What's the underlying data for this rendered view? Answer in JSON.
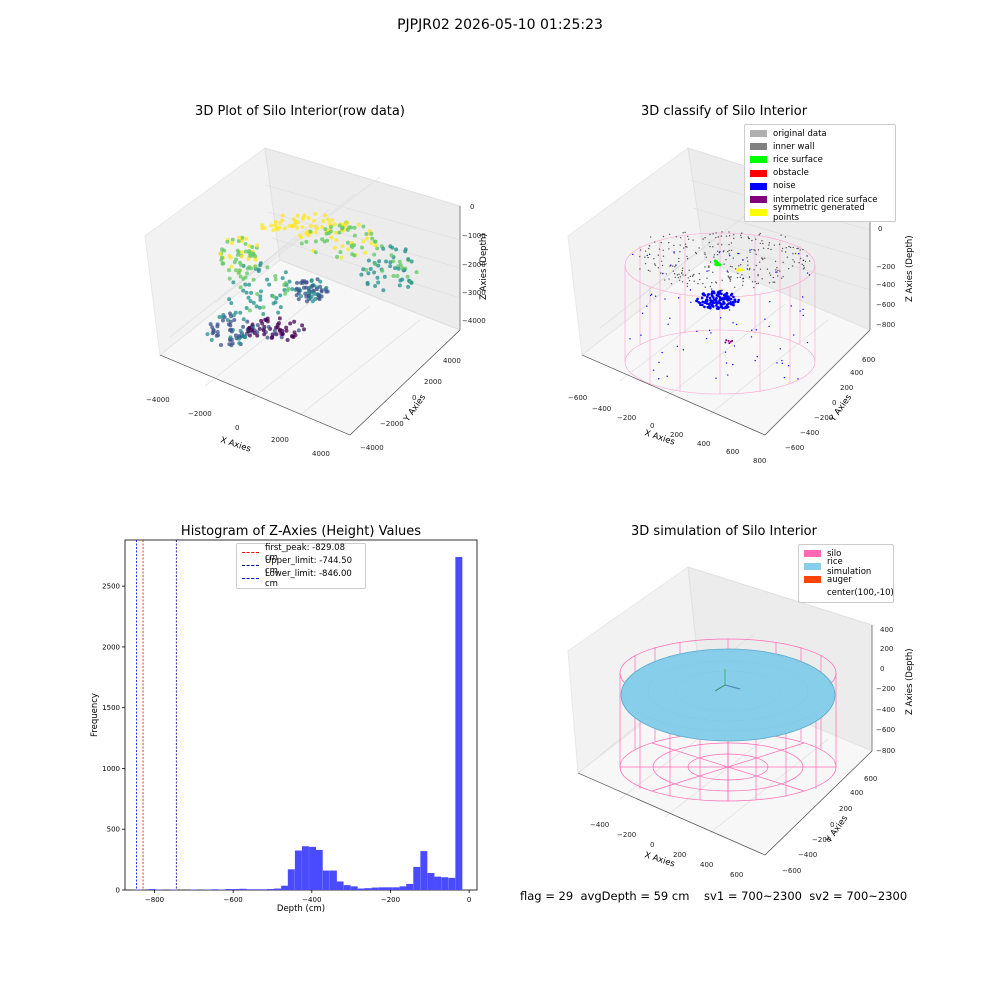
{
  "suptitle": "PJPJR02 2026-05-10 01:25:23",
  "footer": "flag = 29  avgDepth = 59 cm    sv1 = 700~2300  sv2 = 700~2300",
  "chart_data": [
    {
      "type": "scatter",
      "title": "3D Plot of Silo Interior(row data)",
      "xlabel": "X Axies",
      "ylabel": "Y Axies",
      "zlabel": "Z Axies (Depth)",
      "xticks": [
        "−4000",
        "−2000",
        "0",
        "2000",
        "4000"
      ],
      "yticks": [
        "−4000",
        "−2000",
        "0",
        "2000",
        "4000"
      ],
      "zticks": [
        "0",
        "−1000",
        "−2000",
        "−3000",
        "−4000"
      ],
      "colormap": [
        "#440154",
        "#3b528b",
        "#21918c",
        "#5ec962",
        "#fde725"
      ],
      "grid": true
    },
    {
      "type": "scatter",
      "title": "3D classify of Silo Interior",
      "xlabel": "X Axies",
      "ylabel": "Y Axies",
      "zlabel": "Z Axies (Depth)",
      "xticks": [
        "−600",
        "−400",
        "−200",
        "0",
        "200",
        "400",
        "600",
        "800"
      ],
      "yticks": [
        "−600",
        "−400",
        "−200",
        "0",
        "200",
        "400",
        "600"
      ],
      "zticks": [
        "200",
        "0",
        "−200",
        "−400",
        "−600",
        "−800"
      ],
      "legend_position": "top-right",
      "legend": [
        {
          "label": "original data",
          "color": "#b0b0b0"
        },
        {
          "label": "inner wall",
          "color": "#808080"
        },
        {
          "label": "rice surface",
          "color": "#00ff00"
        },
        {
          "label": "obstacle",
          "color": "#ff0000"
        },
        {
          "label": "noise",
          "color": "#0000ff"
        },
        {
          "label": "interpolated rice surface",
          "color": "#800080"
        },
        {
          "label": "symmetric generated points",
          "color": "#ffff00"
        }
      ],
      "grid": true
    },
    {
      "type": "bar",
      "title": "Histogram of Z-Axies (Height) Values",
      "xlabel": "Depth (cm)",
      "ylabel": "Frequency",
      "xlim": [
        -875,
        20
      ],
      "ylim": [
        0,
        2880
      ],
      "xticks": [
        -800,
        -600,
        -400,
        -200,
        0
      ],
      "xtick_labels": [
        "−800",
        "−600",
        "−400",
        "−200",
        "0"
      ],
      "yticks": [
        0,
        500,
        1000,
        1500,
        2000,
        2500
      ],
      "yticklabels": [
        "0",
        "500",
        "1000",
        "1500",
        "2000",
        "2500"
      ],
      "bin_width": 17.7,
      "bins": [
        [
          -850,
          4
        ],
        [
          -832,
          0
        ],
        [
          -815,
          8
        ],
        [
          -797,
          4
        ],
        [
          -779,
          0
        ],
        [
          -762,
          4
        ],
        [
          -744,
          0
        ],
        [
          -726,
          0
        ],
        [
          -708,
          4
        ],
        [
          -691,
          0
        ],
        [
          -673,
          4
        ],
        [
          -655,
          6
        ],
        [
          -638,
          4
        ],
        [
          -620,
          8
        ],
        [
          -602,
          8
        ],
        [
          -584,
          10
        ],
        [
          -567,
          6
        ],
        [
          -549,
          6
        ],
        [
          -531,
          6
        ],
        [
          -514,
          8
        ],
        [
          -496,
          12
        ],
        [
          -478,
          35
        ],
        [
          -461,
          170
        ],
        [
          -443,
          325
        ],
        [
          -425,
          360
        ],
        [
          -407,
          355
        ],
        [
          -390,
          330
        ],
        [
          -372,
          160
        ],
        [
          -354,
          160
        ],
        [
          -337,
          70
        ],
        [
          -319,
          40
        ],
        [
          -301,
          30
        ],
        [
          -283,
          12
        ],
        [
          -266,
          15
        ],
        [
          -248,
          20
        ],
        [
          -230,
          22
        ],
        [
          -213,
          22
        ],
        [
          -195,
          22
        ],
        [
          -177,
          30
        ],
        [
          -160,
          50
        ],
        [
          -142,
          190
        ],
        [
          -124,
          320
        ],
        [
          -106,
          140
        ],
        [
          -89,
          110
        ],
        [
          -71,
          105
        ],
        [
          -53,
          100
        ],
        [
          -35,
          2740
        ]
      ],
      "bar_color": "#4a4aff",
      "vlines": [
        {
          "label": "first_peak: -829.08 cm",
          "x": -829.08,
          "color": "#ff0000"
        },
        {
          "label": "Upper_limit: -744.50 cm",
          "x": -744.5,
          "color": "#00008b"
        },
        {
          "label": "Lower_limit: -846.00 cm",
          "x": -846.0,
          "color": "#0000ff"
        }
      ],
      "legend_position": "top-center"
    },
    {
      "type": "scatter",
      "title": "3D simulation of Silo Interior",
      "xlabel": "X Axies",
      "ylabel": "Y Axies",
      "zlabel": "Z Axies (Depth)",
      "xticks": [
        "−400",
        "−200",
        "0",
        "200",
        "400",
        "600"
      ],
      "yticks": [
        "−600",
        "−400",
        "−200",
        "0",
        "200",
        "400",
        "600"
      ],
      "zticks": [
        "400",
        "200",
        "0",
        "−200",
        "−400",
        "−600",
        "−800"
      ],
      "legend_position": "top-right",
      "legend": [
        {
          "label": "silo",
          "color": "#ff69b4"
        },
        {
          "label": "rice simulation",
          "color": "#87ceeb"
        },
        {
          "label": "auger",
          "color": "#ff4500"
        },
        {
          "label": "center(100,-10)",
          "color": ""
        }
      ],
      "grid": true
    }
  ]
}
